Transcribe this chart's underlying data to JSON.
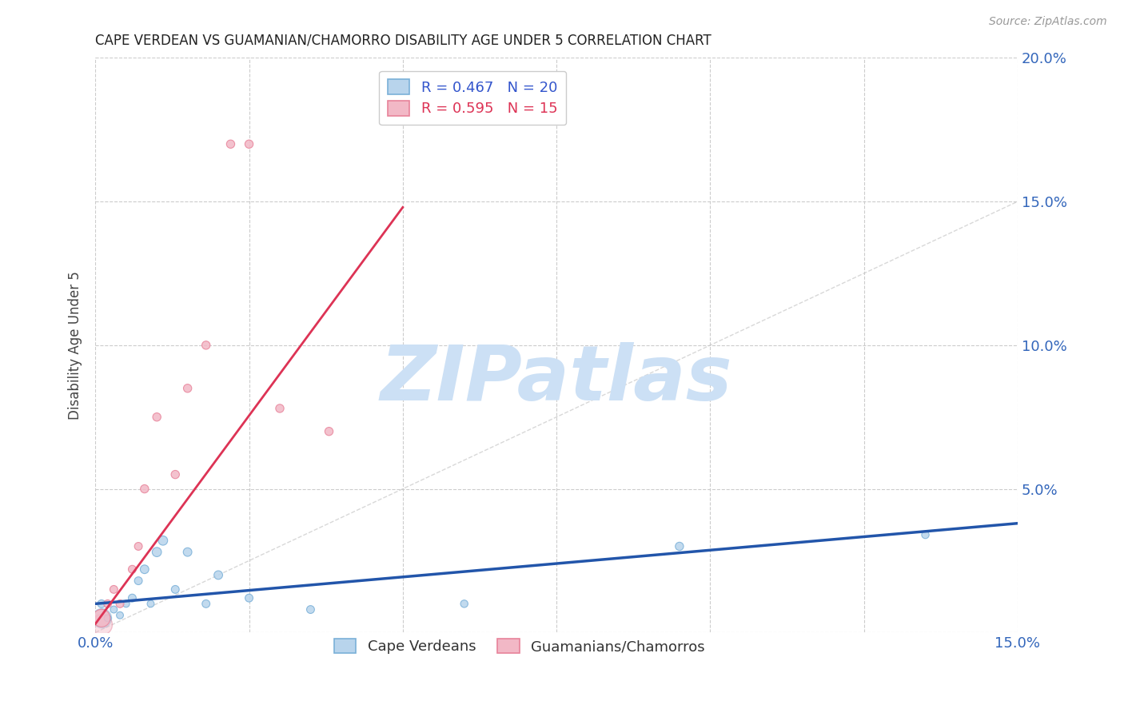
{
  "title": "CAPE VERDEAN VS GUAMANIAN/CHAMORRO DISABILITY AGE UNDER 5 CORRELATION CHART",
  "source": "Source: ZipAtlas.com",
  "ylabel": "Disability Age Under 5",
  "xlim": [
    0.0,
    0.15
  ],
  "ylim": [
    0.0,
    0.2
  ],
  "xticks": [
    0.0,
    0.025,
    0.05,
    0.075,
    0.1,
    0.125,
    0.15
  ],
  "yticks": [
    0.0,
    0.05,
    0.1,
    0.15,
    0.2
  ],
  "xtick_labels": [
    "0.0%",
    "",
    "",
    "",
    "",
    "",
    "15.0%"
  ],
  "ytick_labels_right": [
    "",
    "5.0%",
    "10.0%",
    "15.0%",
    "20.0%"
  ],
  "background_color": "#ffffff",
  "grid_color": "#cccccc",
  "watermark": "ZIPatlas",
  "watermark_color": "#cce0f5",
  "legend_r1": "R = 0.467",
  "legend_n1": "N = 20",
  "legend_r2": "R = 0.595",
  "legend_n2": "N = 15",
  "blue_color": "#7ab0d8",
  "blue_fill": "#b8d4ec",
  "pink_color": "#e8839a",
  "pink_fill": "#f2b8c6",
  "blue_line_color": "#2255aa",
  "pink_line_color": "#dd3355",
  "ref_line_color": "#c8c8c8",
  "cape_verdean_x": [
    0.001,
    0.002,
    0.003,
    0.004,
    0.005,
    0.006,
    0.007,
    0.008,
    0.009,
    0.01,
    0.011,
    0.013,
    0.015,
    0.018,
    0.02,
    0.025,
    0.035,
    0.06,
    0.095,
    0.135
  ],
  "cape_verdean_y": [
    0.01,
    0.005,
    0.008,
    0.006,
    0.01,
    0.012,
    0.018,
    0.022,
    0.01,
    0.028,
    0.032,
    0.015,
    0.028,
    0.01,
    0.02,
    0.012,
    0.008,
    0.01,
    0.03,
    0.034
  ],
  "cape_verdean_size": [
    50,
    40,
    40,
    40,
    40,
    50,
    50,
    60,
    40,
    70,
    70,
    50,
    60,
    50,
    60,
    50,
    50,
    45,
    55,
    45
  ],
  "cape_verdean_size_big": [
    300
  ],
  "cape_verdean_x_big": [
    0.001
  ],
  "cape_verdean_y_big": [
    0.005
  ],
  "guamanian_x": [
    0.001,
    0.002,
    0.003,
    0.004,
    0.006,
    0.007,
    0.008,
    0.01,
    0.013,
    0.015,
    0.018,
    0.022,
    0.025,
    0.03,
    0.038
  ],
  "guamanian_y": [
    0.005,
    0.01,
    0.015,
    0.01,
    0.022,
    0.03,
    0.05,
    0.075,
    0.055,
    0.085,
    0.1,
    0.17,
    0.17,
    0.078,
    0.07
  ],
  "guamanian_size": [
    250,
    50,
    50,
    50,
    50,
    50,
    55,
    55,
    55,
    55,
    55,
    55,
    55,
    55,
    55
  ],
  "blue_line_x": [
    0.0,
    0.15
  ],
  "blue_line_y": [
    0.01,
    0.038
  ],
  "pink_line_x": [
    0.0,
    0.05
  ],
  "pink_line_y": [
    0.003,
    0.148
  ]
}
